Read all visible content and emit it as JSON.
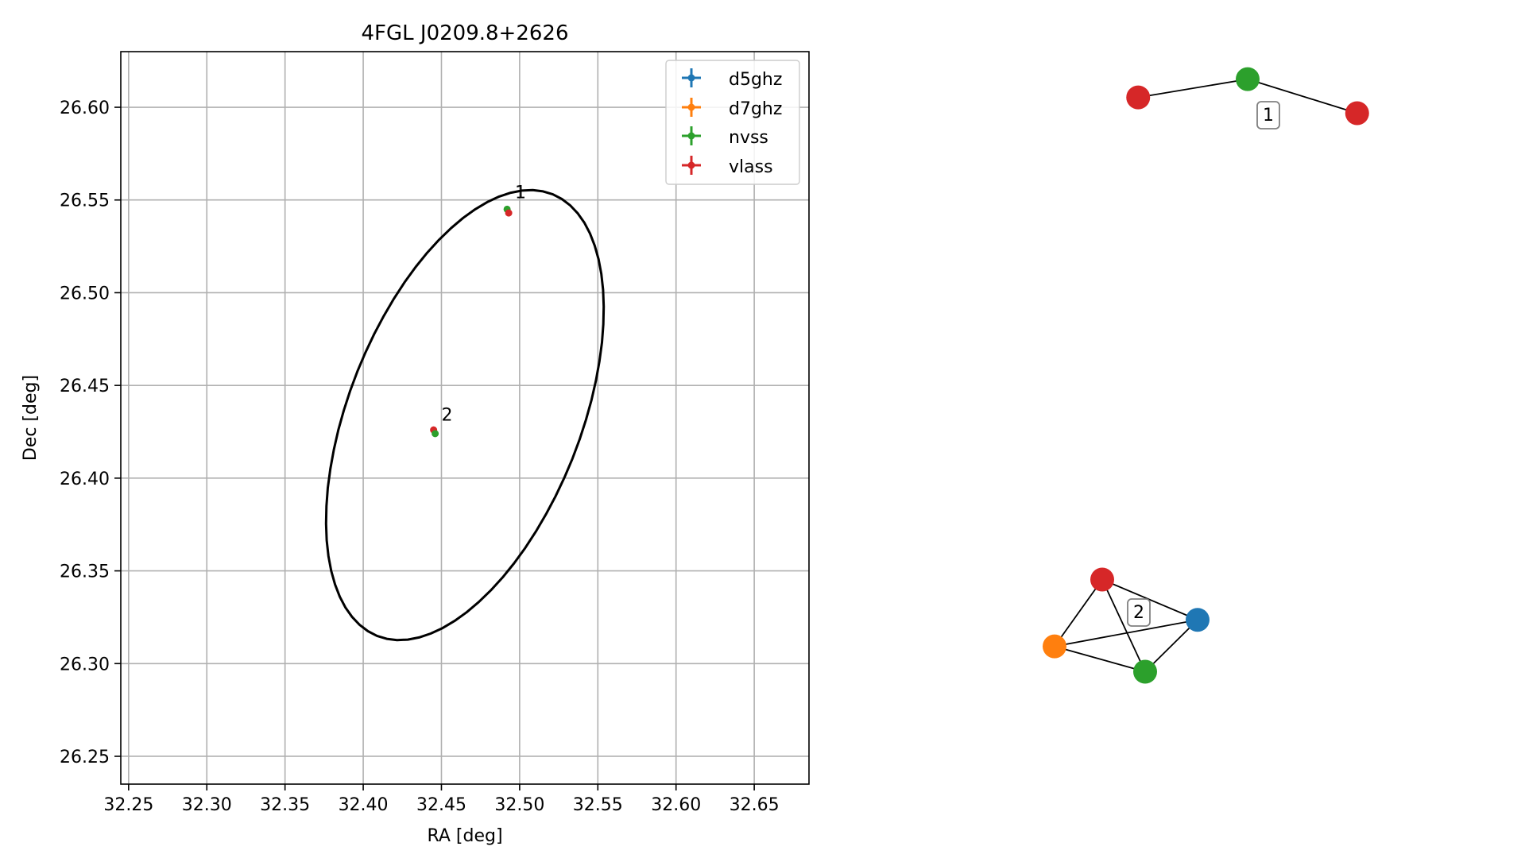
{
  "chart_data": [
    {
      "type": "scatter",
      "title": "4FGL J0209.8+2626",
      "xlabel": "RA [deg]",
      "ylabel": "Dec [deg]",
      "xlim": [
        32.245,
        32.685
      ],
      "ylim": [
        26.235,
        26.63
      ],
      "xticks": [
        "32.25",
        "32.30",
        "32.35",
        "32.40",
        "32.45",
        "32.50",
        "32.55",
        "32.60",
        "32.65"
      ],
      "yticks": [
        "26.25",
        "26.30",
        "26.35",
        "26.40",
        "26.45",
        "26.50",
        "26.55",
        "26.60"
      ],
      "grid": true,
      "legend": {
        "position": "upper right",
        "entries": [
          {
            "name": "d5ghz",
            "color": "#1f77b4"
          },
          {
            "name": "d7ghz",
            "color": "#ff7f0e"
          },
          {
            "name": "nvss",
            "color": "#2ca02c"
          },
          {
            "name": "vlass",
            "color": "#d62728"
          }
        ]
      },
      "ellipse": {
        "center": [
          32.465,
          26.434
        ],
        "semi_axes": [
          0.072,
          0.132
        ],
        "rotation_deg": -28,
        "color": "#000000"
      },
      "points": [
        {
          "series": "nvss",
          "ra": 32.492,
          "dec": 26.545,
          "color": "#2ca02c"
        },
        {
          "series": "vlass",
          "ra": 32.493,
          "dec": 26.543,
          "color": "#d62728"
        },
        {
          "series": "vlass",
          "ra": 32.445,
          "dec": 26.426,
          "color": "#d62728"
        },
        {
          "series": "nvss",
          "ra": 32.446,
          "dec": 26.424,
          "color": "#2ca02c"
        }
      ],
      "cluster_labels": [
        {
          "text": "1",
          "ra": 32.497,
          "dec": 26.551
        },
        {
          "text": "2",
          "ra": 32.45,
          "dec": 26.431
        }
      ]
    },
    {
      "type": "network",
      "clusters": [
        {
          "label": "1",
          "nodes": [
            {
              "id": "a",
              "series": "vlass",
              "color": "#d62728",
              "x": 0.08,
              "y": 0.2
            },
            {
              "id": "b",
              "series": "nvss",
              "color": "#2ca02c",
              "x": 0.5,
              "y": 0.05
            },
            {
              "id": "c",
              "series": "vlass",
              "color": "#d62728",
              "x": 0.92,
              "y": 0.33
            }
          ],
          "edges": [
            [
              "a",
              "b"
            ],
            [
              "b",
              "c"
            ]
          ]
        },
        {
          "label": "2",
          "nodes": [
            {
              "id": "r",
              "series": "vlass",
              "color": "#d62728",
              "x": 0.35,
              "y": 0.1
            },
            {
              "id": "bl",
              "series": "d5ghz",
              "color": "#1f77b4",
              "x": 0.95,
              "y": 0.45
            },
            {
              "id": "o",
              "series": "d7ghz",
              "color": "#ff7f0e",
              "x": 0.05,
              "y": 0.68
            },
            {
              "id": "g",
              "series": "nvss",
              "color": "#2ca02c",
              "x": 0.62,
              "y": 0.9
            }
          ],
          "edges": [
            [
              "r",
              "bl"
            ],
            [
              "r",
              "o"
            ],
            [
              "r",
              "g"
            ],
            [
              "o",
              "bl"
            ],
            [
              "o",
              "g"
            ],
            [
              "bl",
              "g"
            ]
          ]
        }
      ]
    }
  ]
}
